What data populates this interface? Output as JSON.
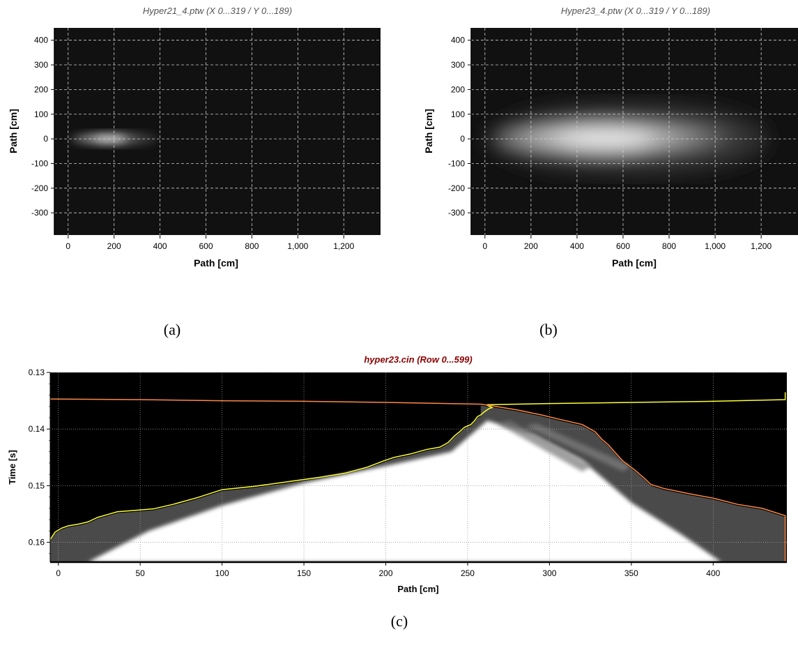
{
  "chart_data": [
    {
      "type": "heatmap",
      "title": "Hyper21_4.ptw (X 0...319 / Y 0...189)",
      "xlabel": "Path [cm]",
      "ylabel": "Path [cm]",
      "xlim": [
        -60,
        1360
      ],
      "ylim": [
        -390,
        450
      ],
      "x_ticks": [
        0,
        200,
        400,
        600,
        800,
        1000,
        1200
      ],
      "x_tick_labels": [
        "0",
        "200",
        "400",
        "600",
        "800",
        "1,000",
        "1,200"
      ],
      "y_ticks": [
        400,
        300,
        200,
        100,
        0,
        -100,
        -200,
        -300
      ],
      "y_tick_labels": [
        "400",
        "300",
        "200",
        "100",
        "0",
        "-100",
        "-200",
        "-300"
      ],
      "grid": true,
      "background": "#111111",
      "plume": {
        "x_start": 0,
        "x_peak": 180,
        "x_end": 380,
        "half_width": 22,
        "peak_intensity": 0.85
      },
      "caption": "(a)"
    },
    {
      "type": "heatmap",
      "title": "Hyper23_4.ptw (X 0...319 / Y 0...189)",
      "xlabel": "Path [cm]",
      "ylabel": "Path [cm]",
      "xlim": [
        -60,
        1360
      ],
      "ylim": [
        -390,
        450
      ],
      "x_ticks": [
        0,
        200,
        400,
        600,
        800,
        1000,
        1200
      ],
      "x_tick_labels": [
        "0",
        "200",
        "400",
        "600",
        "800",
        "1,000",
        "1,200"
      ],
      "y_ticks": [
        400,
        300,
        200,
        100,
        0,
        -100,
        -200,
        -300
      ],
      "y_tick_labels": [
        "400",
        "300",
        "200",
        "100",
        "0",
        "-100",
        "-200",
        "-300"
      ],
      "grid": true,
      "background": "#111111",
      "plume": {
        "x_start": 0,
        "x_peak": 520,
        "x_end": 1200,
        "half_width": 95,
        "peak_intensity": 0.95
      },
      "caption": "(b)"
    },
    {
      "type": "heatmap",
      "title": "hyper23.cin (Row 0...599)",
      "xlabel": "Path [cm]",
      "ylabel": "Time [s]",
      "xlim": [
        -5,
        445
      ],
      "ylim": [
        0.1635,
        0.13
      ],
      "x_ticks": [
        0,
        50,
        100,
        150,
        200,
        250,
        300,
        350,
        400
      ],
      "x_tick_labels": [
        "0",
        "50",
        "100",
        "150",
        "200",
        "250",
        "300",
        "350",
        "400"
      ],
      "y_ticks": [
        0.13,
        0.14,
        0.15,
        0.16
      ],
      "y_tick_labels": [
        "0.13",
        "0.14",
        "0.15",
        "0.16"
      ],
      "grid": true,
      "background": "#000000",
      "series": [
        {
          "color": "#ffff33",
          "x": [
            -5,
            -2,
            2,
            6,
            12,
            18,
            24,
            30,
            36,
            45,
            58,
            70,
            85,
            100,
            120,
            140,
            160,
            175,
            188,
            198,
            205,
            215,
            225,
            233,
            238,
            242,
            245,
            248,
            252,
            254,
            256,
            258,
            260,
            263,
            265,
            262,
            262,
            300,
            350,
            400,
            444,
            444
          ],
          "y": [
            0.1595,
            0.1582,
            0.1575,
            0.1571,
            0.1568,
            0.1564,
            0.1556,
            0.1551,
            0.1546,
            0.1544,
            0.1541,
            0.1533,
            0.1521,
            0.1507,
            0.1501,
            0.1493,
            0.1485,
            0.1478,
            0.1468,
            0.1457,
            0.145,
            0.1444,
            0.1436,
            0.1432,
            0.1424,
            0.1412,
            0.1405,
            0.1397,
            0.1392,
            0.1386,
            0.1378,
            0.1375,
            0.137,
            0.1364,
            0.1362,
            0.1358,
            0.1357,
            0.1355,
            0.1353,
            0.1351,
            0.1348,
            0.1335
          ]
        },
        {
          "color": "#ff8844",
          "x": [
            -5,
            50,
            100,
            150,
            200,
            258,
            265,
            280,
            295,
            305,
            320,
            328,
            332,
            336,
            340,
            345,
            352,
            358,
            362,
            370,
            385,
            400,
            415,
            430,
            444,
            444
          ],
          "y": [
            0.1347,
            0.1348,
            0.135,
            0.1351,
            0.1353,
            0.1356,
            0.1359,
            0.1366,
            0.1375,
            0.1382,
            0.1392,
            0.1405,
            0.1418,
            0.1428,
            0.1441,
            0.1457,
            0.1472,
            0.1487,
            0.1498,
            0.1505,
            0.1514,
            0.1522,
            0.1533,
            0.154,
            0.1553,
            0.1635
          ]
        }
      ],
      "caption": "(c)"
    }
  ]
}
